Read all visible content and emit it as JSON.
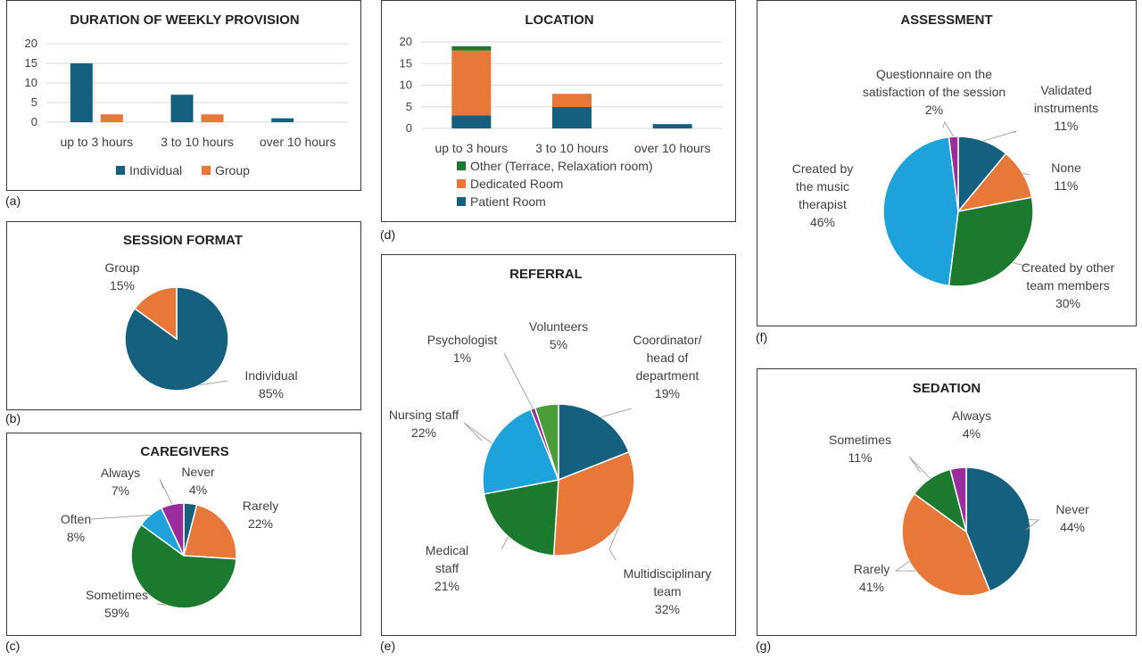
{
  "colors": {
    "blue": "#16607f",
    "orange": "#e8773a",
    "green": "#1b7a2e",
    "lightblue": "#1ea2dc",
    "purple": "#9a2c9c"
  },
  "panel_labels": {
    "a": "(a)",
    "b": "(b)",
    "c": "(c)",
    "d": "(d)",
    "e": "(e)",
    "f": "(f)",
    "g": "(g)"
  },
  "chart_data": [
    {
      "id": "a",
      "type": "bar",
      "title": "DURATION OF WEEKLY PROVISION",
      "categories": [
        "up to 3 hours",
        "3 to 10 hours",
        "over 10 hours"
      ],
      "series": [
        {
          "name": "Individual",
          "values": [
            15,
            7,
            1
          ],
          "color": "#16607f"
        },
        {
          "name": "Group",
          "values": [
            2,
            2,
            0
          ],
          "color": "#e8773a"
        }
      ],
      "ylim": [
        0,
        20
      ],
      "yticks": [
        0,
        5,
        10,
        15,
        20
      ],
      "grid": true,
      "legend": "bottom"
    },
    {
      "id": "b",
      "type": "pie",
      "title": "SESSION FORMAT",
      "slices": [
        {
          "label": "Individual",
          "value": 85,
          "pct": "85%",
          "color": "#16607f"
        },
        {
          "label": "Group",
          "value": 15,
          "pct": "15%",
          "color": "#e8773a"
        }
      ]
    },
    {
      "id": "c",
      "type": "pie",
      "title": "CAREGIVERS",
      "slices": [
        {
          "label": "Never",
          "value": 4,
          "pct": "4%",
          "color": "#16607f"
        },
        {
          "label": "Rarely",
          "value": 22,
          "pct": "22%",
          "color": "#e8773a"
        },
        {
          "label": "Sometimes",
          "value": 59,
          "pct": "59%",
          "color": "#1b7a2e"
        },
        {
          "label": "Often",
          "value": 8,
          "pct": "8%",
          "color": "#1ea2dc"
        },
        {
          "label": "Always",
          "value": 7,
          "pct": "7%",
          "color": "#9a2c9c"
        }
      ]
    },
    {
      "id": "d",
      "type": "bar",
      "stacked": true,
      "title": "LOCATION",
      "categories": [
        "up to 3 hours",
        "3 to 10 hours",
        "over 10 hours"
      ],
      "series": [
        {
          "name": "Patient Room",
          "values": [
            3,
            5,
            1
          ],
          "color": "#16607f"
        },
        {
          "name": "Dedicated Room",
          "values": [
            15,
            3,
            0
          ],
          "color": "#e8773a"
        },
        {
          "name": "Other (Terrace, Relaxation room)",
          "values": [
            1,
            0,
            0
          ],
          "color": "#1b7a2e"
        }
      ],
      "ylim": [
        0,
        20
      ],
      "yticks": [
        0,
        5,
        10,
        15,
        20
      ],
      "grid": true,
      "legend": "bottom"
    },
    {
      "id": "e",
      "type": "pie",
      "title": "REFERRAL",
      "slices": [
        {
          "label": "Coordinator/ head of department",
          "value": 19,
          "pct": "19%",
          "color": "#16607f"
        },
        {
          "label": "Multidisciplinary team",
          "value": 32,
          "pct": "32%",
          "color": "#e8773a"
        },
        {
          "label": "Medical staff",
          "value": 21,
          "pct": "21%",
          "color": "#1b7a2e"
        },
        {
          "label": "Nursing staff",
          "value": 22,
          "pct": "22%",
          "color": "#1ea2dc"
        },
        {
          "label": "Psychologist",
          "value": 1,
          "pct": "1%",
          "color": "#9a2c9c"
        },
        {
          "label": "Volunteers",
          "value": 5,
          "pct": "5%",
          "color": "#4a9e3a"
        }
      ]
    },
    {
      "id": "f",
      "type": "pie",
      "title": "ASSESSMENT",
      "slices": [
        {
          "label": "Validated instruments",
          "value": 11,
          "pct": "11%",
          "color": "#16607f"
        },
        {
          "label": "None",
          "value": 11,
          "pct": "11%",
          "color": "#e8773a"
        },
        {
          "label": "Created by other team members",
          "value": 30,
          "pct": "30%",
          "color": "#1b7a2e"
        },
        {
          "label": "Created by the music therapist",
          "value": 46,
          "pct": "46%",
          "color": "#1ea2dc"
        },
        {
          "label": "Questionnaire on the satisfaction of the session",
          "value": 2,
          "pct": "2%",
          "color": "#9a2c9c"
        }
      ]
    },
    {
      "id": "g",
      "type": "pie",
      "title": "SEDATION",
      "slices": [
        {
          "label": "Never",
          "value": 44,
          "pct": "44%",
          "color": "#16607f"
        },
        {
          "label": "Rarely",
          "value": 41,
          "pct": "41%",
          "color": "#e8773a"
        },
        {
          "label": "Sometimes",
          "value": 11,
          "pct": "11%",
          "color": "#1b7a2e"
        },
        {
          "label": "Always",
          "value": 4,
          "pct": "4%",
          "color": "#9a2c9c"
        }
      ]
    }
  ]
}
